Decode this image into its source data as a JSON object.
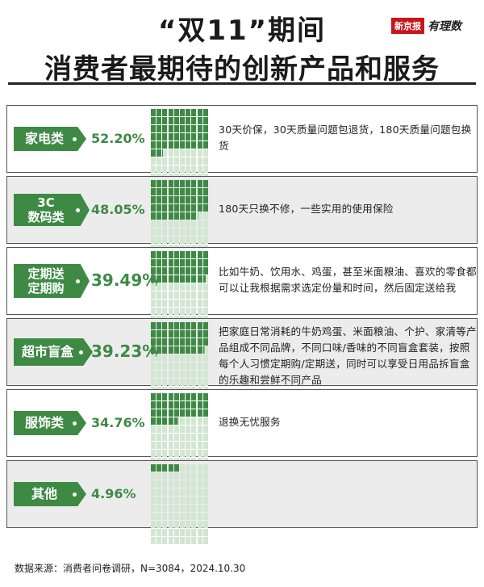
{
  "header": {
    "title_line1": "“双11”期间",
    "title_line2": "消费者最期待的创新产品和服务",
    "brand_name": "新京报",
    "brand_sub": "有理数"
  },
  "colors": {
    "accent_green": "#3e8a45",
    "fill_green": "#3e8a45",
    "empty_green": "#d3e6d3",
    "row_gray": "#ececec"
  },
  "chart_data": {
    "type": "table",
    "unit": "%",
    "categories": [
      "家电类",
      "3C数码类",
      "定期送定期购",
      "超市盲盒",
      "服饰类",
      "其他"
    ],
    "values": [
      52.2,
      48.05,
      39.49,
      39.23,
      34.76,
      4.96
    ],
    "rows": [
      {
        "label": "家电类",
        "value": 52.2,
        "value_text": "52.20%",
        "description": "30天价保，30天质量问题包退货，180天质量问题包换货"
      },
      {
        "label": "3C数码类",
        "value": 48.05,
        "value_text": "48.05%",
        "description": "180天只换不修，一些实用的使用保险"
      },
      {
        "label": "定期送定期购",
        "value": 39.49,
        "value_text": "39.49%",
        "description": "比如牛奶、饮用水、鸡蛋，甚至米面粮油、喜欢的零食都可以让我根据需求选定份量和时间，然后固定送给我"
      },
      {
        "label": "超市盲盒",
        "value": 39.23,
        "value_text": "39.23%",
        "description": "把家庭日常消耗的牛奶鸡蛋、米面粮油、个护、家清等产品组成不同品牌，不同口味/香味的不同盲盒套装，按照每个人习惯定期购/定期送，同时可以享受日用品拆盲盒的乐趣和尝鲜不同产品"
      },
      {
        "label": "服饰类",
        "value": 34.76,
        "value_text": "34.76%",
        "description": "退换无忧服务"
      },
      {
        "label": "其他",
        "value": 4.96,
        "value_text": "4.96%",
        "description": ""
      }
    ]
  },
  "rows_display": [
    {
      "tag_lines": [
        "家电类"
      ]
    },
    {
      "tag_lines": [
        "3C",
        "数码类"
      ]
    },
    {
      "tag_lines": [
        "定期送",
        "定期购"
      ]
    },
    {
      "tag_lines": [
        "超市盲盒"
      ]
    },
    {
      "tag_lines": [
        "服饰类"
      ]
    },
    {
      "tag_lines": [
        "其他"
      ]
    }
  ],
  "footer": {
    "source": "数据来源：消费者问卷调研，N=3084，2024.10.30"
  }
}
